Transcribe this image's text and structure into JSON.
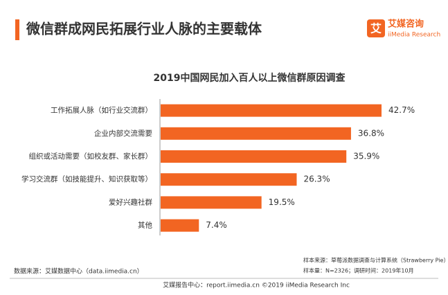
{
  "header": {
    "title": "微信群成网民拓展行业人脉的主要载体",
    "logo": "艾媒咨询",
    "logo_sub": "iiMedia Research"
  },
  "chart_data": {
    "type": "hbar",
    "title": "2019中国网民加入百人以上微信群原因调查",
    "categories": [
      "工作拓展人脉（如行业交流群）",
      "企业内部交流需要",
      "组织或活动需要（如校友群、家长群）",
      "学习交流群（如技能提升、知识获取等）",
      "爱好兴趣社群",
      "其他"
    ],
    "values": [
      42.7,
      36.8,
      35.9,
      26.3,
      19.5,
      7.4
    ],
    "value_labels": [
      "42.7%",
      "36.8%",
      "35.9%",
      "26.3%",
      "19.5%",
      "7.4%"
    ],
    "color": "#f26522"
  },
  "notes": {
    "sample_source": "样本来源：草莓派数据调查与计算系统（Strawberry Pie）",
    "sample_info": "样本量：N=2326；调研时间：2019年10月",
    "data_source": "数据来源：艾媒数据中心（data.iimedia.cn）"
  },
  "footer": "艾媒报告中心：report.iimedia.cn ©2019  iiMedia Research  Inc"
}
